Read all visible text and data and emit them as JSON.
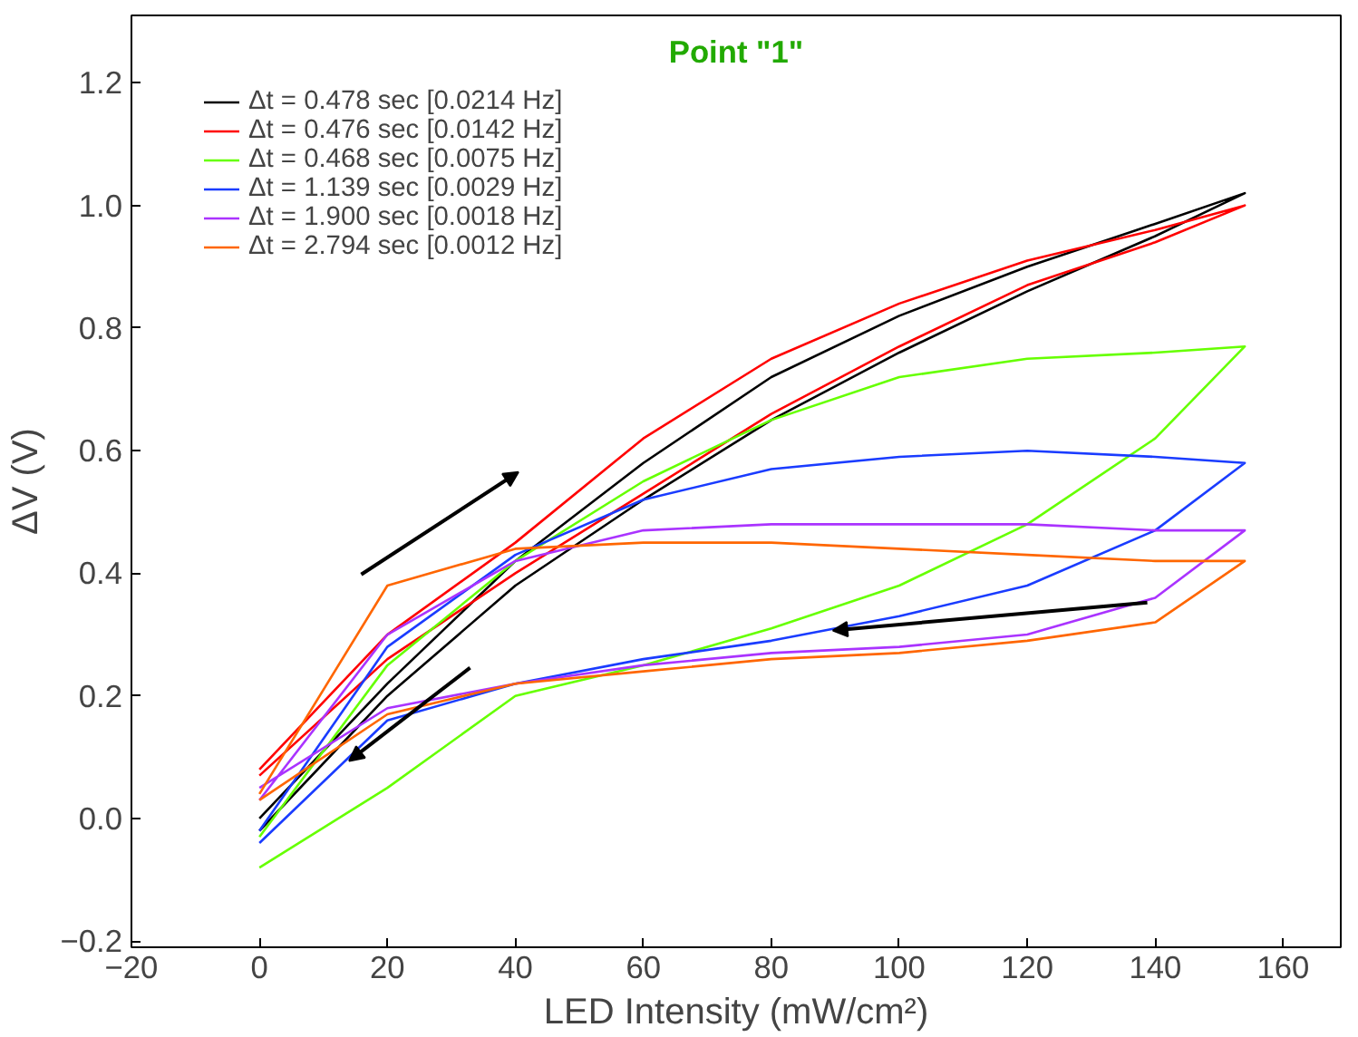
{
  "chart_data": {
    "type": "line",
    "title": "Point \"1\"",
    "xlabel": "LED Intensity (mW/cm²)",
    "ylabel": "ΔV (V)",
    "x": [
      0,
      20,
      40,
      60,
      80,
      100,
      120,
      140,
      154,
      140,
      120,
      100,
      80,
      60,
      40,
      20,
      0
    ],
    "series": [
      {
        "name": "Δt = 0.478 sec [0.0214 Hz]",
        "color": "#000000",
        "values": [
          -0.02,
          0.2,
          0.38,
          0.52,
          0.65,
          0.76,
          0.86,
          0.95,
          1.02,
          0.97,
          0.9,
          0.82,
          0.72,
          0.58,
          0.42,
          0.22,
          0.0
        ]
      },
      {
        "name": "Δt = 0.476 sec [0.0142 Hz]",
        "color": "#ff0000",
        "values": [
          0.07,
          0.26,
          0.4,
          0.53,
          0.66,
          0.77,
          0.87,
          0.94,
          1.0,
          0.96,
          0.91,
          0.84,
          0.75,
          0.62,
          0.45,
          0.3,
          0.08
        ]
      },
      {
        "name": "Δt = 0.468 sec [0.0075 Hz]",
        "color": "#66ff00",
        "values": [
          -0.03,
          0.25,
          0.42,
          0.55,
          0.65,
          0.72,
          0.75,
          0.76,
          0.77,
          0.62,
          0.48,
          0.38,
          0.31,
          0.25,
          0.2,
          0.05,
          -0.08
        ]
      },
      {
        "name": "Δt = 1.139 sec [0.0029 Hz]",
        "color": "#1a3cff",
        "values": [
          -0.02,
          0.28,
          0.43,
          0.52,
          0.57,
          0.59,
          0.6,
          0.59,
          0.58,
          0.47,
          0.38,
          0.33,
          0.29,
          0.26,
          0.22,
          0.16,
          -0.04
        ]
      },
      {
        "name": "Δt = 1.900 sec [0.0018 Hz]",
        "color": "#aa33ff",
        "values": [
          0.03,
          0.3,
          0.42,
          0.47,
          0.48,
          0.48,
          0.48,
          0.47,
          0.47,
          0.36,
          0.3,
          0.28,
          0.27,
          0.25,
          0.22,
          0.18,
          0.05
        ]
      },
      {
        "name": "Δt = 2.794 sec [0.0012 Hz]",
        "color": "#ff6600",
        "values": [
          0.04,
          0.38,
          0.44,
          0.45,
          0.45,
          0.44,
          0.43,
          0.42,
          0.42,
          0.32,
          0.29,
          0.27,
          0.26,
          0.24,
          0.22,
          0.17,
          0.03
        ]
      }
    ],
    "xlim": [
      -20,
      169
    ],
    "ylim": [
      -0.21,
      1.31
    ],
    "xticks": [
      -20,
      0,
      20,
      40,
      60,
      80,
      100,
      120,
      140,
      160
    ],
    "yticks": [
      -0.2,
      {
        "value": 0,
        "label": "0.0"
      },
      0.2,
      0.4,
      0.6,
      0.8,
      {
        "value": 1,
        "label": "1.0"
      },
      1.2
    ],
    "grid": false,
    "legend": "top left",
    "marker": "none",
    "line_style": "solid"
  }
}
